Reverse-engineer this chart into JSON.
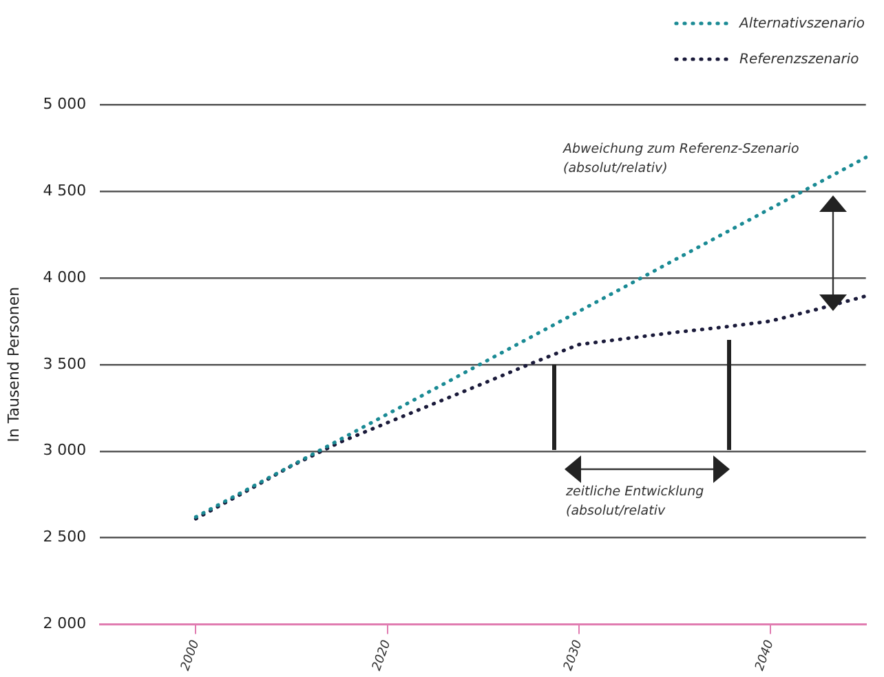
{
  "chart_data": {
    "type": "line",
    "ylabel": "In Tausend Personen",
    "categories": [
      null,
      null,
      "2000",
      null,
      null,
      null,
      "2020",
      null,
      null,
      null,
      "2030",
      null,
      null,
      null,
      "2040",
      null,
      null
    ],
    "ylim": [
      2000,
      5000
    ],
    "yticks": [
      {
        "value": 2000,
        "label": "2 000"
      },
      {
        "value": 2500,
        "label": "2 500"
      },
      {
        "value": 3000,
        "label": "3 000"
      },
      {
        "value": 3500,
        "label": "3 500"
      },
      {
        "value": 4000,
        "label": "4 000"
      },
      {
        "value": 4500,
        "label": "4 500"
      },
      {
        "value": 5000,
        "label": "5 000"
      }
    ],
    "series": [
      {
        "name": "Alternativszenario",
        "color": "#1a8a94",
        "values": [
          null,
          null,
          2620,
          2768,
          2917,
          3065,
          3213,
          3361,
          3510,
          3658,
          3806,
          3954,
          4103,
          4251,
          4399,
          4547,
          4695
        ]
      },
      {
        "name": "Referenzszenario",
        "color": "#1a1a3a",
        "values": [
          null,
          null,
          2610,
          2760,
          2915,
          3050,
          3164,
          3277,
          3390,
          3505,
          3615,
          3650,
          3685,
          3715,
          3750,
          3820,
          3895
        ]
      }
    ],
    "annotations": [
      "Abweichung zum Referenz-Szenario\n(absolut/relativ)",
      "zeitliche Entwicklung\n(absolut/relativ"
    ],
    "grid": "y",
    "legend": "top right",
    "marker": "none",
    "line_style": "dotted"
  }
}
